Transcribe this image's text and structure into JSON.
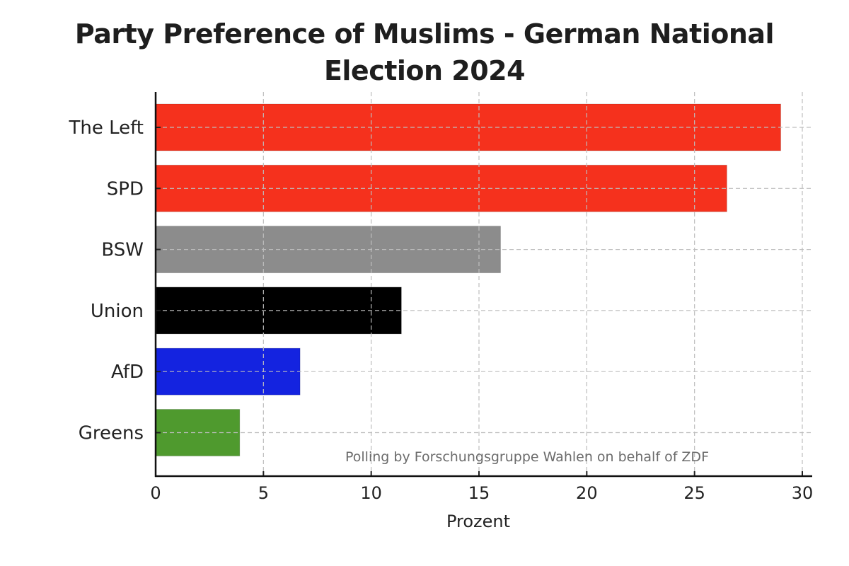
{
  "chart_data": {
    "type": "bar",
    "orientation": "horizontal",
    "title": "Party Preference of Muslims - German National Election 2024",
    "title_lines": [
      "Party Preference of Muslims - German National",
      "Election 2024"
    ],
    "categories": [
      "The Left",
      "SPD",
      "BSW",
      "Union",
      "AfD",
      "Greens"
    ],
    "values": [
      29,
      26.5,
      16,
      11.4,
      6.7,
      3.9
    ],
    "colors": [
      "#f5311d",
      "#f5311d",
      "#8c8c8c",
      "#000000",
      "#1423e0",
      "#4f9a2e"
    ],
    "xlabel": "Prozent",
    "ylabel": "",
    "xlim": [
      0,
      30
    ],
    "xticks": [
      0,
      5,
      10,
      15,
      20,
      25,
      30
    ],
    "grid": true,
    "grid_style": "dashed",
    "annotation": "Polling by Forschungsgruppe Wahlen on behalf of ZDF",
    "annotation_placement": "bottom-right"
  }
}
